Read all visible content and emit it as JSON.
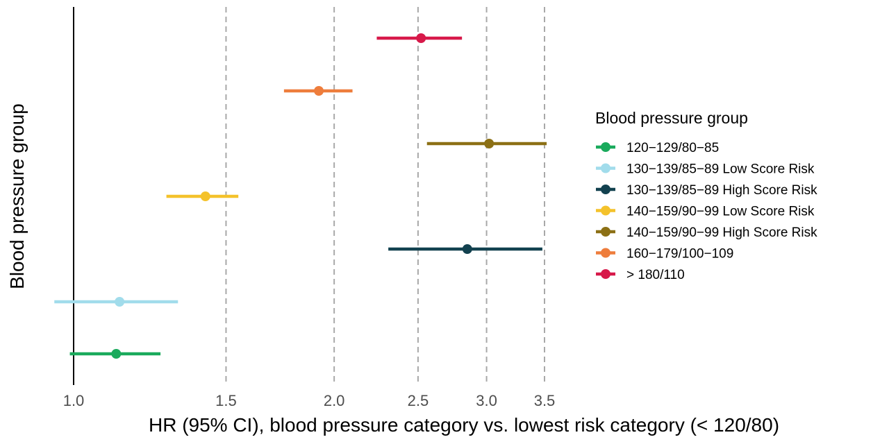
{
  "chart_data": {
    "type": "forest",
    "xlabel": "HR (95% CI), blood pressure category vs. lowest risk category (< 120/80)",
    "ylabel": "Blood pressure group",
    "x_ticks": [
      1.0,
      1.5,
      2.0,
      2.5,
      3.0,
      3.5
    ],
    "x_tick_labels": [
      "1.0",
      "1.5",
      "2.0",
      "2.5",
      "3.0",
      "3.5"
    ],
    "x_scale": "log",
    "reference_line": 1.0,
    "grid": "dashed vertical lines at 1.5, 2.0, 2.5, 3.0, 3.5",
    "legend": {
      "title": "Blood pressure group",
      "position": "right"
    },
    "series": [
      {
        "name": "120−129/80−85",
        "hr": 1.12,
        "lower": 0.99,
        "upper": 1.26,
        "color": "#1aaa5c"
      },
      {
        "name": "130−139/85−89 Low Score Risk",
        "hr": 1.13,
        "lower": 0.95,
        "upper": 1.32,
        "color": "#a1dceb"
      },
      {
        "name": "130−139/85−89 High Score Risk",
        "hr": 2.85,
        "lower": 2.31,
        "upper": 3.48,
        "color": "#12414f"
      },
      {
        "name": "140−159/90−99 Low Score Risk",
        "hr": 1.42,
        "lower": 1.28,
        "upper": 1.55,
        "color": "#f4c22b"
      },
      {
        "name": "140−159/90−99 High Score Risk",
        "hr": 3.02,
        "lower": 2.56,
        "upper": 3.52,
        "color": "#8c7015"
      },
      {
        "name": "160−179/100−109",
        "hr": 1.92,
        "lower": 1.75,
        "upper": 2.1,
        "color": "#ee7d3c"
      },
      {
        "name": "> 180/110",
        "hr": 2.52,
        "lower": 2.24,
        "upper": 2.81,
        "color": "#d7194a"
      }
    ]
  }
}
